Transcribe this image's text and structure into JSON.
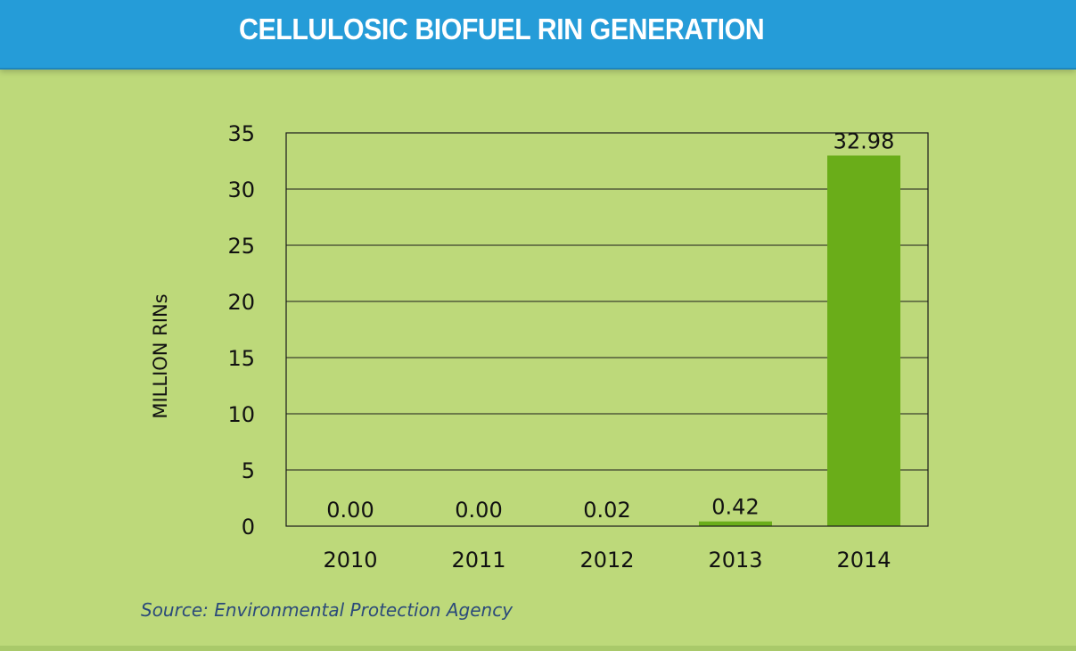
{
  "header": {
    "title": "CELLULOSIC BIOFUEL RIN GENERATION"
  },
  "source": "Source: Environmental Protection Agency",
  "colors": {
    "header": "#259cd8",
    "background": "#bdd97a",
    "bar": "#6aad19"
  },
  "chart_data": {
    "type": "bar",
    "title": "CELLULOSIC BIOFUEL RIN GENERATION",
    "xlabel": "",
    "ylabel": "MILLION RINs",
    "categories": [
      "2010",
      "2011",
      "2012",
      "2013",
      "2014"
    ],
    "values": [
      0.0,
      0.0,
      0.02,
      0.42,
      32.98
    ],
    "data_labels": [
      "0.00",
      "0.00",
      "0.02",
      "0.42",
      "32.98"
    ],
    "ylim": [
      0,
      35
    ],
    "yticks": [
      "0",
      "5",
      "10",
      "15",
      "20",
      "25",
      "30",
      "35"
    ],
    "grid": true,
    "legend": "none"
  }
}
